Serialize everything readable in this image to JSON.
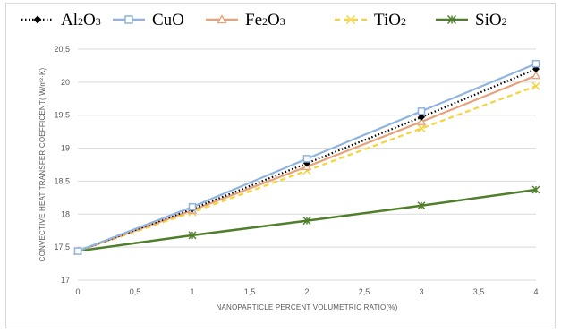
{
  "chart_data": {
    "type": "line",
    "xlabel": "NANOPARTICLE PERCENT VOLUMETRIC RATIO(%)",
    "ylabel": "CONVECTIVE  HEAT  TRANSFER  COEFFICENT(  W/m²·K)",
    "x": [
      0,
      1,
      2,
      3,
      4
    ],
    "xlim": [
      0,
      4
    ],
    "ylim": [
      17,
      20.5
    ],
    "x_ticks": [
      "0",
      "0,5",
      "1",
      "1,5",
      "2",
      "2,5",
      "3",
      "3,5",
      "4"
    ],
    "y_ticks": [
      "17",
      "17,5",
      "18",
      "18,5",
      "19",
      "19,5",
      "20",
      "20,5"
    ],
    "grid": "horizontal",
    "legend_position": "top",
    "series": [
      {
        "name": "Al2O3",
        "label_main": "Al",
        "label_parts": [
          "Al",
          "2",
          "O",
          "3"
        ],
        "color": "#000000",
        "marker": "diamond",
        "dash": "dotted",
        "values": [
          17.44,
          18.08,
          18.77,
          19.47,
          20.2
        ]
      },
      {
        "name": "CuO",
        "label_parts": [
          "CuO"
        ],
        "color": "#8fb4e0",
        "marker": "square",
        "dash": "solid",
        "values": [
          17.44,
          18.11,
          18.84,
          19.56,
          20.28
        ]
      },
      {
        "name": "Fe2O3",
        "label_parts": [
          "Fe",
          "2",
          "O",
          "3"
        ],
        "color": "#e8a27a",
        "marker": "triangle",
        "dash": "solid",
        "values": [
          17.44,
          18.06,
          18.72,
          19.4,
          20.1
        ]
      },
      {
        "name": "TiO2",
        "label_parts": [
          "TiO",
          "2"
        ],
        "color": "#f5d33a",
        "marker": "x",
        "dash": "dashed",
        "values": [
          17.44,
          18.03,
          18.66,
          19.3,
          19.94
        ]
      },
      {
        "name": "SiO2",
        "label_parts": [
          "SiO",
          "2"
        ],
        "color": "#4f7f2a",
        "marker": "asterisk",
        "dash": "solid",
        "values": [
          17.44,
          17.68,
          17.9,
          18.13,
          18.37
        ]
      }
    ]
  }
}
